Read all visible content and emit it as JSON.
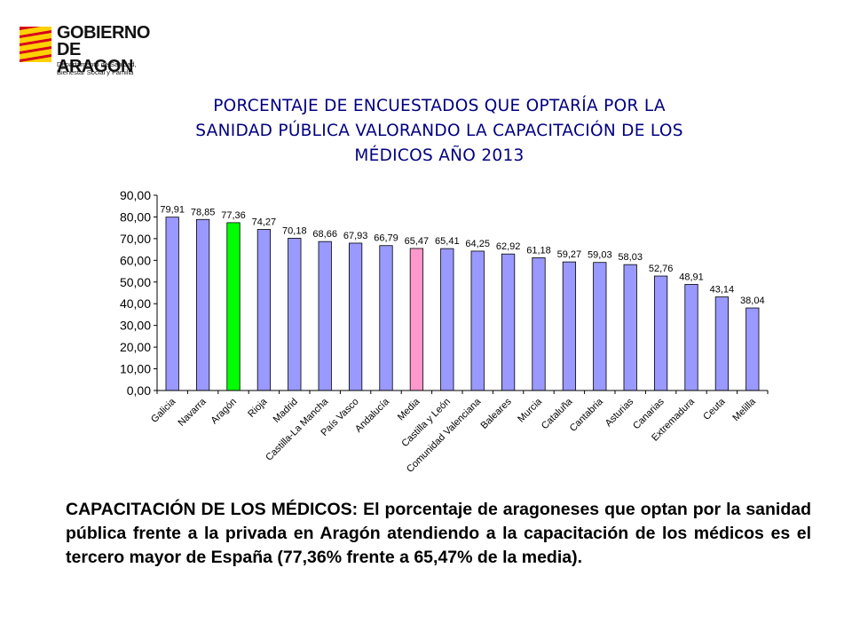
{
  "logo": {
    "title_line1": "GOBIERNO",
    "title_line2": "DE ARAGON",
    "dept_line1": "Departamento de Sanidad,",
    "dept_line2": "Bienestar Social y Familia",
    "colors": {
      "red": "#d6001c",
      "yellow": "#ffd100"
    }
  },
  "title_lines": [
    "PORCENTAJE DE ENCUESTADOS QUE OPTARÍA POR LA",
    "SANIDAD PÚBLICA VALORANDO LA CAPACITACIÓN DE LOS",
    "MÉDICOS AÑO 2013"
  ],
  "chart_data": {
    "type": "bar",
    "title": "PORCENTAJE DE ENCUESTADOS QUE OPTARÍA POR LA SANIDAD PÚBLICA VALORANDO LA CAPACITACIÓN DE LOS MÉDICOS AÑO 2013",
    "categories": [
      "Galicia",
      "Navarra",
      "Aragón",
      "Rioja",
      "Madrid",
      "Castilla-La Mancha",
      "País Vasco",
      "Andalucía",
      "Media",
      "Castilla y León",
      "Comunidad Valenciana",
      "Baleares",
      "Murcia",
      "Cataluña",
      "Cantabria",
      "Asturias",
      "Canarias",
      "Extremadura",
      "Ceuta",
      "Melilla"
    ],
    "values": [
      79.91,
      78.85,
      77.36,
      74.27,
      70.18,
      68.66,
      67.93,
      66.79,
      65.47,
      65.41,
      64.25,
      62.92,
      61.18,
      59.27,
      59.03,
      58.03,
      52.76,
      48.91,
      43.14,
      38.04
    ],
    "data_labels": [
      "79,91",
      "78,85",
      "77,36",
      "74,27",
      "70,18",
      "68,66",
      "67,93",
      "66,79",
      "65,47",
      "65,41",
      "64,25",
      "62,92",
      "61,18",
      "59,27",
      "59,03",
      "58,03",
      "52,76",
      "48,91",
      "43,14",
      "38,04"
    ],
    "y_tick_labels": [
      "0,00",
      "10,00",
      "20,00",
      "30,00",
      "40,00",
      "50,00",
      "60,00",
      "70,00",
      "80,00",
      "90,00"
    ],
    "ylim": [
      0,
      90
    ],
    "y_tick_step": 10,
    "xlabel": "",
    "ylabel": "",
    "grid": false,
    "legend": "none",
    "colors": {
      "default": "#9999ff",
      "highlight_aragon": "#00ff00",
      "highlight_media": "#ff99cc",
      "border": "#000000"
    },
    "highlights": {
      "Aragón": "highlight_aragon",
      "Media": "highlight_media"
    }
  },
  "caption": "CAPACITACIÓN DE LOS MÉDICOS: El porcentaje de aragoneses que optan por la sanidad pública frente a la privada en Aragón atendiendo a la capacitación de los médicos es el tercero mayor de España (77,36% frente a 65,47% de la media)."
}
